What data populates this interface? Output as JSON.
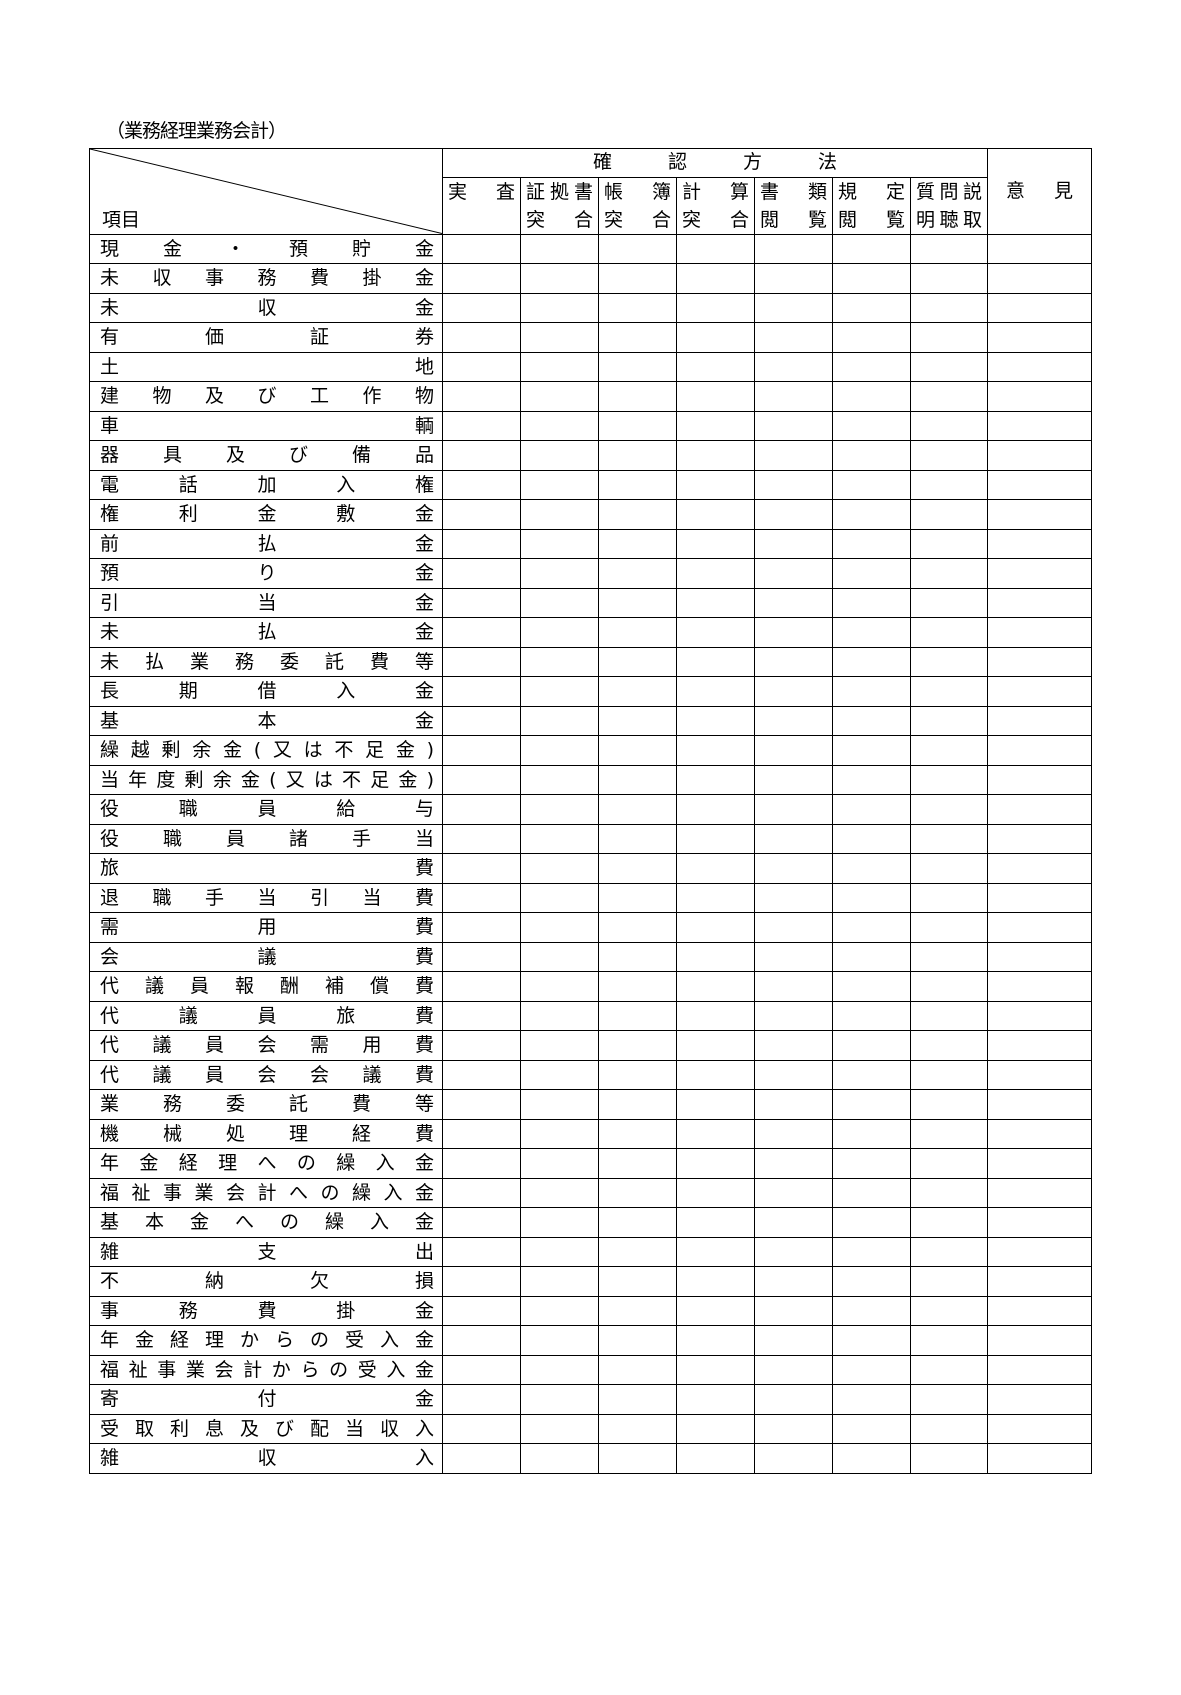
{
  "subtitle": "（業務経理業務会計）",
  "header": {
    "item_label": "項目",
    "method_group": "確認方法",
    "opinion": "意見",
    "methods": [
      {
        "line1": "実査",
        "line2": ""
      },
      {
        "line1": "証拠書",
        "line2": "突合"
      },
      {
        "line1": "帳簿",
        "line2": "突合"
      },
      {
        "line1": "計算",
        "line2": "突合"
      },
      {
        "line1": "書類",
        "line2": "閲覧"
      },
      {
        "line1": "規定",
        "line2": "閲覧"
      },
      {
        "line1": "質問説",
        "line2": "明聴取"
      }
    ]
  },
  "rows": [
    "現金・預貯金",
    "未収事務費掛金",
    "未収金",
    "有価証券",
    "土地",
    "建物及び工作物",
    "車輌",
    "器具及び備品",
    "電話加入権",
    "権利金敷金",
    "前払金",
    "預り金",
    "引当金",
    "未払金",
    "未払業務委託費等",
    "長期借入金",
    "基本金",
    "繰越剰余金(又は不足金)",
    "当年度剰余金(又は不足金)",
    "役職員給与",
    "役職員諸手当",
    "旅費",
    "退職手当引当費",
    "需用費",
    "会議費",
    "代議員報酬補償費",
    "代議員旅費",
    "代議員会需用費",
    "代議員会会議費",
    "業務委託費等",
    "機械処理経費",
    "年金経理への繰入金",
    "福祉事業会計への繰入金",
    "基本金への繰入金",
    "雑支出",
    "不納欠損",
    "事務費掛金",
    "年金経理からの受入金",
    "福祉事業会計からの受入金",
    "寄付金",
    "受取利息及び配当収入",
    "雑収入"
  ]
}
